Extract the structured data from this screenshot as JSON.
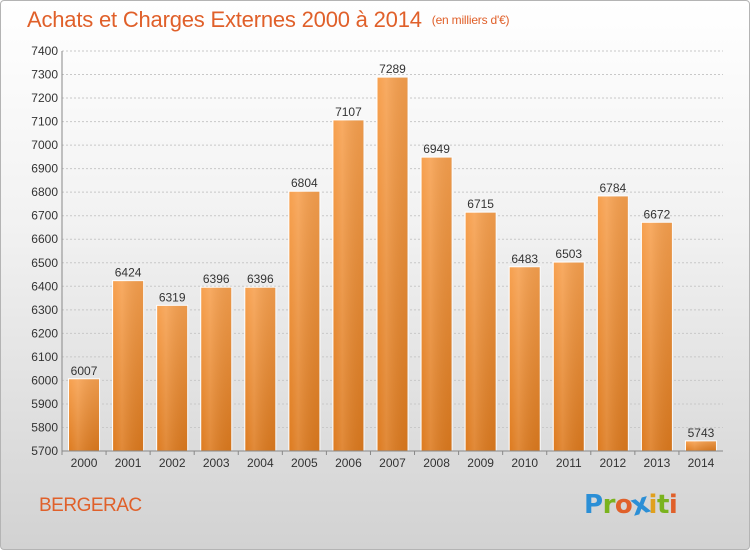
{
  "header": {
    "title": "Achats et Charges Externes 2000 à 2014",
    "unit": "(en milliers d'€)"
  },
  "footer": {
    "city": "BERGERAC",
    "logo": [
      "P",
      "r",
      "o",
      "x",
      "i",
      "t",
      "i"
    ],
    "logo_colors": [
      "#2b8fd6",
      "#7ab31e",
      "#e0602a",
      "#2b8fd6",
      "#e0a01e",
      "#7ab31e",
      "#e0602a"
    ]
  },
  "chart_data": {
    "type": "bar",
    "title": "Achats et Charges Externes 2000 à 2014",
    "subtitle": "(en milliers d'€)",
    "categories": [
      "2000",
      "2001",
      "2002",
      "2003",
      "2004",
      "2005",
      "2006",
      "2007",
      "2008",
      "2009",
      "2010",
      "2011",
      "2012",
      "2013",
      "2014"
    ],
    "values": [
      6007,
      6424,
      6319,
      6396,
      6396,
      6804,
      7107,
      7289,
      6949,
      6715,
      6483,
      6503,
      6784,
      6672,
      5743
    ],
    "ylim": [
      5700,
      7400
    ],
    "yticks": [
      5700,
      5800,
      5900,
      6000,
      6100,
      6200,
      6300,
      6400,
      6500,
      6600,
      6700,
      6800,
      6900,
      7000,
      7100,
      7200,
      7300,
      7400
    ],
    "grid": true,
    "bar_color_top": "#f7a04e",
    "bar_color_bottom": "#dd7a1e"
  }
}
